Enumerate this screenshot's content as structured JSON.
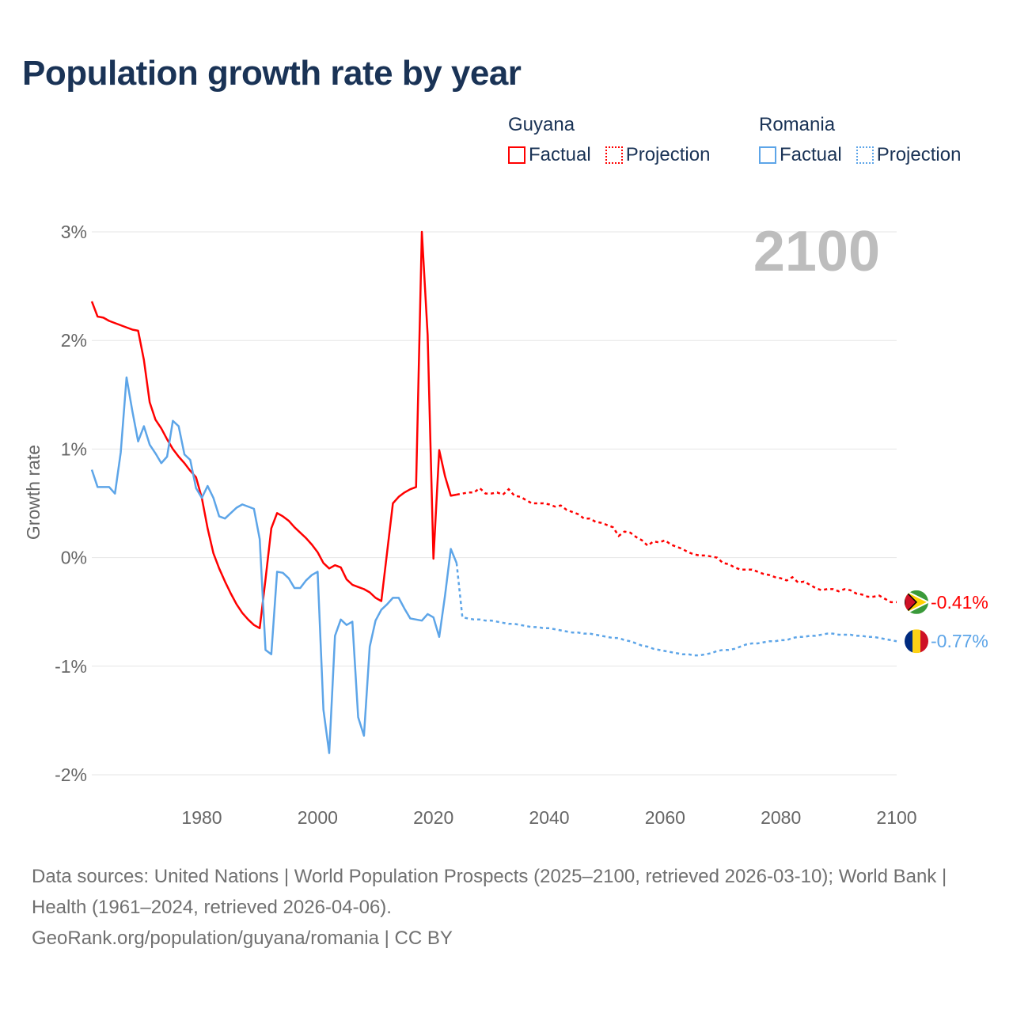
{
  "title": "Population growth rate by year",
  "legend": {
    "groups": [
      {
        "name": "Guyana",
        "factual": "Factual",
        "projection": "Projection",
        "color": "#ff0000"
      },
      {
        "name": "Romania",
        "factual": "Factual",
        "projection": "Projection",
        "color": "#5da5e8"
      }
    ]
  },
  "footer": {
    "sources": "Data sources: United Nations | World Population Prospects (2025–2100, retrieved 2026-03-10); World Bank | Health (1961–2024, retrieved 2026-04-06).",
    "credit": "GeoRank.org/population/guyana/romania | CC BY"
  },
  "chart_data": {
    "type": "line",
    "title": "Population growth rate by year",
    "xlabel": "",
    "ylabel": "Growth rate",
    "year_label": "2100",
    "xlim": [
      1961,
      2100
    ],
    "ylim": [
      -2.2,
      3.1
    ],
    "x_ticks": [
      1980,
      2000,
      2020,
      2040,
      2060,
      2080,
      2100
    ],
    "y_ticks": [
      {
        "v": 3,
        "label": "3%"
      },
      {
        "v": 2,
        "label": "2%"
      },
      {
        "v": 1,
        "label": "1%"
      },
      {
        "v": 0,
        "label": "0%"
      },
      {
        "v": -1,
        "label": "-1%"
      },
      {
        "v": -2,
        "label": "-2%"
      }
    ],
    "grid": true,
    "legend_position": "top-right",
    "series": [
      {
        "name": "Guyana",
        "color": "#ff0000",
        "end_label": "-0.41%",
        "flag": "guyana-flag",
        "factual_start": 1961,
        "factual": [
          2.36,
          2.22,
          2.21,
          2.18,
          2.16,
          2.14,
          2.12,
          2.1,
          2.09,
          1.82,
          1.43,
          1.27,
          1.19,
          1.09,
          1.0,
          0.93,
          0.87,
          0.8,
          0.74,
          0.55,
          0.27,
          0.04,
          -0.1,
          -0.22,
          -0.33,
          -0.43,
          -0.51,
          -0.57,
          -0.62,
          -0.65,
          -0.2,
          0.27,
          0.41,
          0.38,
          0.34,
          0.28,
          0.23,
          0.18,
          0.12,
          0.05,
          -0.05,
          -0.1,
          -0.07,
          -0.09,
          -0.2,
          -0.25,
          -0.27,
          -0.29,
          -0.32,
          -0.37,
          -0.4,
          0.05,
          0.5,
          0.56,
          0.6,
          0.63,
          0.65,
          3.0,
          2.05,
          -0.01,
          0.99,
          0.75,
          0.57,
          0.58
        ],
        "projection_start": 2025,
        "projection": [
          0.59,
          0.6,
          0.6,
          0.64,
          0.59,
          0.59,
          0.6,
          0.58,
          0.63,
          0.57,
          0.56,
          0.53,
          0.5,
          0.5,
          0.5,
          0.49,
          0.47,
          0.48,
          0.44,
          0.42,
          0.4,
          0.36,
          0.36,
          0.33,
          0.32,
          0.3,
          0.28,
          0.2,
          0.24,
          0.23,
          0.19,
          0.16,
          0.11,
          0.15,
          0.14,
          0.16,
          0.12,
          0.1,
          0.08,
          0.05,
          0.03,
          0.02,
          0.02,
          0.01,
          0.0,
          -0.05,
          -0.06,
          -0.09,
          -0.11,
          -0.11,
          -0.11,
          -0.13,
          -0.15,
          -0.16,
          -0.18,
          -0.19,
          -0.21,
          -0.18,
          -0.23,
          -0.22,
          -0.25,
          -0.28,
          -0.3,
          -0.29,
          -0.29,
          -0.31,
          -0.29,
          -0.3,
          -0.33,
          -0.34,
          -0.36,
          -0.36,
          -0.35,
          -0.38,
          -0.41,
          -0.41
        ]
      },
      {
        "name": "Romania",
        "color": "#5da5e8",
        "end_label": "-0.77%",
        "flag": "romania-flag",
        "factual_start": 1961,
        "factual": [
          0.81,
          0.65,
          0.65,
          0.65,
          0.59,
          0.97,
          1.66,
          1.35,
          1.07,
          1.21,
          1.04,
          0.96,
          0.87,
          0.93,
          1.26,
          1.21,
          0.95,
          0.9,
          0.64,
          0.55,
          0.66,
          0.55,
          0.38,
          0.36,
          0.41,
          0.46,
          0.49,
          0.47,
          0.45,
          0.17,
          -0.85,
          -0.89,
          -0.13,
          -0.14,
          -0.19,
          -0.28,
          -0.28,
          -0.21,
          -0.16,
          -0.13,
          -1.4,
          -1.8,
          -0.72,
          -0.57,
          -0.62,
          -0.59,
          -1.47,
          -1.64,
          -0.82,
          -0.58,
          -0.48,
          -0.43,
          -0.37,
          -0.37,
          -0.47,
          -0.56,
          -0.57,
          -0.58,
          -0.52,
          -0.55,
          -0.73,
          -0.35,
          0.08,
          -0.05
        ],
        "projection_start": 2025,
        "projection": [
          -0.55,
          -0.56,
          -0.57,
          -0.57,
          -0.58,
          -0.58,
          -0.59,
          -0.6,
          -0.61,
          -0.61,
          -0.62,
          -0.63,
          -0.64,
          -0.64,
          -0.65,
          -0.65,
          -0.66,
          -0.67,
          -0.68,
          -0.69,
          -0.69,
          -0.7,
          -0.7,
          -0.71,
          -0.72,
          -0.73,
          -0.74,
          -0.74,
          -0.76,
          -0.77,
          -0.79,
          -0.81,
          -0.82,
          -0.84,
          -0.85,
          -0.86,
          -0.87,
          -0.88,
          -0.89,
          -0.89,
          -0.9,
          -0.9,
          -0.89,
          -0.88,
          -0.86,
          -0.85,
          -0.85,
          -0.84,
          -0.82,
          -0.8,
          -0.79,
          -0.79,
          -0.78,
          -0.77,
          -0.77,
          -0.76,
          -0.76,
          -0.74,
          -0.73,
          -0.73,
          -0.72,
          -0.72,
          -0.71,
          -0.7,
          -0.7,
          -0.71,
          -0.71,
          -0.71,
          -0.72,
          -0.72,
          -0.73,
          -0.73,
          -0.74,
          -0.75,
          -0.76,
          -0.77
        ]
      }
    ]
  }
}
